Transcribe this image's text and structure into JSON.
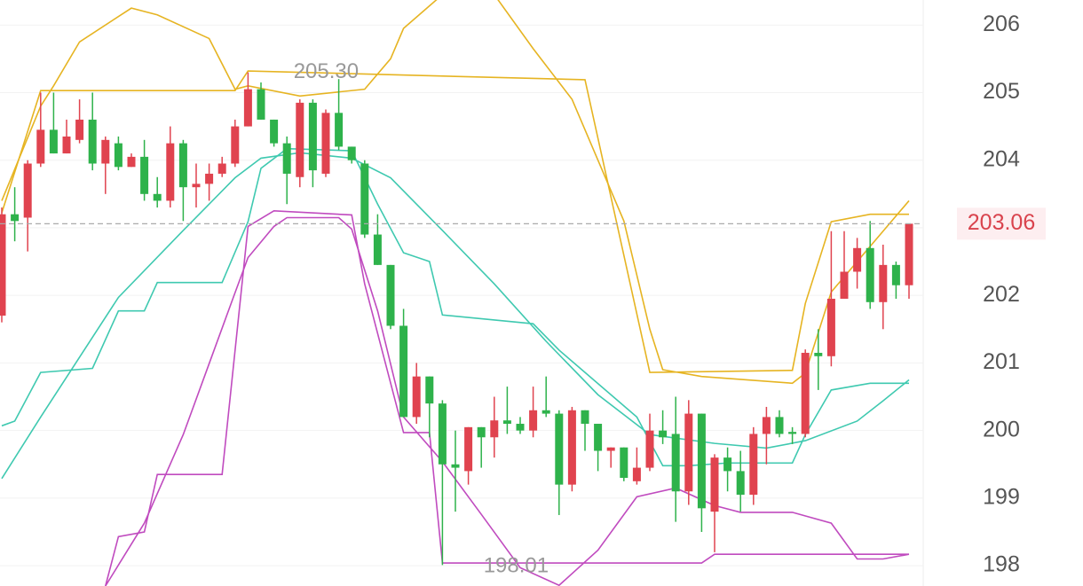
{
  "chart_data": {
    "type": "candlestick",
    "ylim": [
      197.7,
      206.37
    ],
    "yticks": [
      198,
      199,
      200,
      201,
      202,
      203,
      204,
      205,
      206
    ],
    "grid": true,
    "up_color": "#e0434f",
    "down_color": "#2eb24b",
    "open": [
      201.7,
      203.2,
      203.15,
      203.95,
      204.45,
      204.1,
      204.3,
      204.6,
      203.95,
      204.25,
      203.9,
      204.05,
      203.5,
      203.4,
      204.25,
      203.6,
      203.65,
      203.8,
      203.95,
      204.5,
      205.05,
      204.6,
      204.25,
      203.75,
      204.85,
      203.8,
      204.7,
      204.2,
      203.95,
      202.9,
      202.45,
      201.55,
      200.2,
      200.8,
      200.4,
      199.5,
      199.4,
      200.05,
      199.9,
      200.15,
      200.1,
      200.0,
      200.3,
      200.25,
      199.2,
      200.3,
      200.1,
      199.7,
      199.75,
      199.25,
      199.45,
      200.0,
      199.95,
      199.1,
      200.25,
      198.8,
      199.6,
      199.4,
      199.05,
      199.95,
      200.2,
      199.98,
      199.95,
      201.15,
      201.1,
      201.95,
      202.35,
      202.7,
      201.9,
      202.45,
      202.15
    ],
    "high": [
      203.3,
      203.6,
      204.0,
      205.0,
      205.0,
      204.6,
      204.9,
      205.0,
      204.35,
      204.35,
      204.1,
      204.3,
      203.75,
      204.5,
      204.3,
      203.95,
      203.95,
      204.05,
      204.6,
      205.3,
      205.15,
      204.6,
      204.35,
      204.9,
      204.9,
      204.75,
      205.2,
      204.2,
      204.0,
      203.2,
      202.45,
      201.8,
      201.0,
      200.8,
      200.45,
      200.0,
      200.05,
      200.05,
      200.5,
      200.65,
      200.2,
      200.65,
      200.8,
      200.3,
      200.35,
      200.3,
      200.1,
      199.75,
      199.75,
      199.75,
      200.25,
      200.3,
      200.5,
      200.45,
      200.25,
      199.65,
      199.75,
      199.7,
      200.05,
      200.35,
      200.3,
      200.05,
      201.2,
      201.5,
      202.95,
      202.95,
      202.85,
      203.1,
      202.75,
      202.5,
      203.06
    ],
    "low": [
      201.6,
      202.8,
      202.65,
      203.9,
      204.1,
      204.1,
      204.25,
      203.85,
      203.5,
      203.85,
      203.9,
      203.4,
      203.3,
      203.3,
      203.1,
      203.3,
      203.4,
      203.75,
      203.9,
      204.5,
      204.6,
      204.2,
      203.35,
      203.6,
      203.6,
      203.75,
      204.15,
      203.95,
      202.85,
      202.45,
      201.5,
      200.2,
      200.1,
      199.9,
      198.01,
      198.8,
      199.2,
      199.45,
      199.6,
      199.95,
      199.95,
      199.9,
      200.2,
      198.75,
      199.1,
      199.7,
      199.4,
      199.45,
      199.25,
      199.2,
      199.4,
      199.8,
      198.65,
      198.9,
      198.5,
      198.2,
      199.1,
      198.8,
      198.9,
      199.5,
      199.9,
      199.8,
      199.9,
      200.6,
      200.95,
      201.95,
      202.1,
      201.8,
      201.5,
      201.95,
      201.95
    ],
    "close": [
      203.2,
      203.1,
      203.95,
      204.45,
      204.1,
      204.35,
      204.6,
      203.95,
      204.3,
      203.9,
      204.05,
      203.5,
      203.4,
      204.25,
      203.6,
      203.65,
      203.8,
      203.95,
      204.5,
      205.05,
      204.6,
      204.25,
      203.8,
      204.85,
      203.85,
      204.7,
      204.2,
      204.0,
      202.9,
      202.45,
      201.55,
      200.2,
      200.8,
      200.4,
      199.5,
      199.45,
      200.05,
      199.9,
      200.15,
      200.1,
      200.0,
      200.3,
      200.25,
      199.2,
      200.3,
      200.1,
      199.7,
      199.75,
      199.3,
      199.45,
      200.0,
      199.9,
      199.1,
      200.25,
      198.85,
      199.6,
      199.4,
      199.05,
      199.95,
      200.2,
      199.95,
      199.95,
      201.15,
      201.1,
      201.95,
      202.35,
      202.7,
      201.9,
      202.45,
      202.15,
      203.06
    ],
    "lines": [
      {
        "color": "#e6b422",
        "x": [
          0,
          3,
          4,
          6,
          10,
          12,
          16,
          18,
          19,
          23,
          28,
          30,
          31,
          34,
          38,
          41,
          44,
          46,
          48,
          50,
          51,
          54,
          61,
          62,
          64,
          66,
          68,
          70
        ],
        "values": [
          203.4,
          204.8,
          205.1,
          205.75,
          206.25,
          206.15,
          205.8,
          205.05,
          205.1,
          204.95,
          205.05,
          205.5,
          205.95,
          206.45,
          206.45,
          205.65,
          204.9,
          204.0,
          203.1,
          201.5,
          200.9,
          200.8,
          200.7,
          200.85,
          202.05,
          202.5,
          202.95,
          203.4
        ]
      },
      {
        "color": "#e6b422",
        "x": [
          0,
          3,
          18,
          19,
          45,
          50,
          61,
          62,
          64,
          67,
          70
        ],
        "values": [
          203.22,
          205.03,
          205.03,
          205.32,
          205.19,
          200.86,
          200.89,
          201.88,
          203.09,
          203.2,
          203.2
        ]
      },
      {
        "color": "#3fc9b0",
        "x": [
          0,
          1,
          3,
          7,
          9,
          11,
          12,
          17,
          19,
          20,
          22,
          27,
          29,
          31,
          33,
          34,
          41,
          43,
          49,
          51,
          53,
          56,
          61,
          62,
          64,
          67,
          70
        ],
        "values": [
          200.07,
          200.14,
          200.86,
          200.92,
          201.77,
          201.77,
          202.19,
          202.19,
          203.09,
          203.88,
          204.17,
          204.14,
          203.35,
          202.63,
          202.5,
          201.71,
          201.58,
          201.19,
          200.2,
          199.48,
          199.48,
          199.52,
          199.52,
          199.94,
          200.6,
          200.7,
          200.7
        ]
      },
      {
        "color": "#3fc9b0",
        "x": [
          0,
          3,
          9,
          14,
          18,
          20,
          23,
          27,
          30,
          34,
          38,
          42,
          46,
          50,
          55,
          59,
          62,
          66,
          68,
          70
        ],
        "values": [
          199.29,
          200.2,
          201.97,
          202.96,
          203.74,
          204.03,
          204.11,
          204.03,
          203.74,
          202.96,
          202.17,
          201.32,
          200.53,
          199.94,
          199.81,
          199.74,
          199.85,
          200.14,
          200.44,
          200.75
        ]
      },
      {
        "color": "#c04bbf",
        "x": [
          8,
          11,
          14,
          16,
          18,
          19,
          21,
          22,
          26,
          27,
          29,
          31,
          34,
          37,
          40,
          43,
          46,
          49,
          52,
          55,
          57,
          61,
          64,
          66,
          68,
          70
        ],
        "values": [
          197.7,
          198.63,
          199.94,
          200.99,
          202.04,
          202.56,
          203.02,
          203.15,
          203.15,
          202.98,
          201.77,
          200.2,
          199.54,
          198.76,
          197.97,
          197.71,
          198.23,
          199.02,
          199.15,
          198.89,
          198.79,
          198.79,
          198.63,
          198.1,
          198.1,
          198.17
        ]
      },
      {
        "color": "#c04bbf",
        "x": [
          8,
          9,
          11,
          12,
          17,
          19,
          21,
          27,
          28,
          31,
          33,
          34,
          54,
          55,
          70
        ],
        "values": [
          197.7,
          198.43,
          198.5,
          199.35,
          199.35,
          203.02,
          203.25,
          203.19,
          202.17,
          199.97,
          199.97,
          198.04,
          198.04,
          198.17,
          198.17
        ]
      }
    ],
    "annotations": [
      {
        "value": 205.3,
        "label": "205.30"
      },
      {
        "value": 198.01,
        "label": "198.01"
      }
    ],
    "current_price": {
      "value": 203.06,
      "label": "203.06"
    },
    "current_color": "#d9434d"
  }
}
